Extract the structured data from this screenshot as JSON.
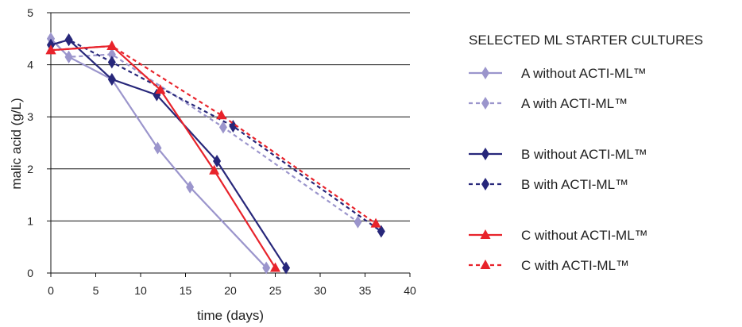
{
  "chart_data": {
    "type": "line",
    "xlabel": "time (days)",
    "ylabel": "malic acid (g/L)",
    "xlim": [
      0,
      40
    ],
    "ylim": [
      0,
      5
    ],
    "xticks": [
      0,
      5,
      10,
      15,
      20,
      25,
      30,
      35,
      40
    ],
    "yticks": [
      0,
      1,
      2,
      3,
      4,
      5
    ],
    "grid": "horizontal",
    "legend_title": "SELECTED ML STARTER CULTURES",
    "legend_position": "right",
    "series": [
      {
        "name": "A without ACTI-ML™",
        "color": "#9b95cc",
        "marker": "diamond",
        "dashed": false,
        "x": [
          0,
          2,
          6.8,
          11.9,
          15.5,
          24
        ],
        "y": [
          4.5,
          4.15,
          3.72,
          2.4,
          1.65,
          0.1
        ]
      },
      {
        "name": "A with ACTI-ML™",
        "color": "#9b95cc",
        "marker": "diamond",
        "dashed": true,
        "x": [
          0,
          2,
          6.8,
          19.2,
          34.2
        ],
        "y": [
          4.5,
          4.15,
          4.2,
          2.8,
          0.98
        ]
      },
      {
        "name": "B without ACTI-ML™",
        "color": "#27277a",
        "marker": "diamond",
        "dashed": false,
        "x": [
          0,
          2,
          6.8,
          11.8,
          18.5,
          26.2
        ],
        "y": [
          4.38,
          4.48,
          3.72,
          3.42,
          2.15,
          0.1
        ]
      },
      {
        "name": "B with ACTI-ML™",
        "color": "#27277a",
        "marker": "diamond",
        "dashed": true,
        "x": [
          0,
          2,
          6.8,
          20.3,
          36.8
        ],
        "y": [
          4.38,
          4.48,
          4.05,
          2.82,
          0.8
        ]
      },
      {
        "name": "C without ACTI-ML™",
        "color": "#e8232b",
        "marker": "triangle",
        "dashed": false,
        "x": [
          0,
          6.8,
          12.2,
          18.2,
          25
        ],
        "y": [
          4.28,
          4.36,
          3.52,
          1.97,
          0.1
        ]
      },
      {
        "name": "C with ACTI-ML™",
        "color": "#e8232b",
        "marker": "triangle",
        "dashed": true,
        "x": [
          0,
          6.8,
          19,
          36.2
        ],
        "y": [
          4.28,
          4.36,
          3.03,
          0.95
        ]
      }
    ]
  }
}
